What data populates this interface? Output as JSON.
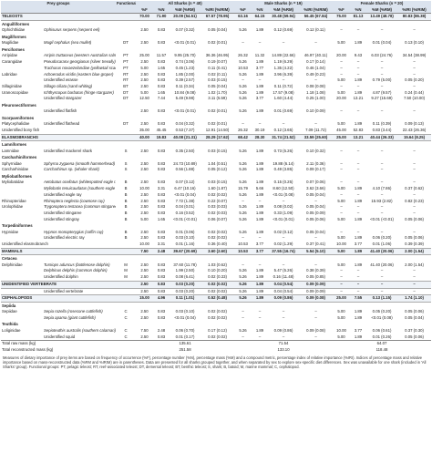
{
  "table": {
    "headers": [
      "Prey groups",
      "Functional group",
      "All Sharks (n = 40)",
      "Male Sharks (n = 19)",
      "Female Sharks (n = 20)"
    ],
    "sub_headers": [
      "%F",
      "%N",
      "%M (%RM)",
      "%IRI (%IRIM)"
    ],
    "rows": [
      [
        "TELEOSTS",
        null,
        null,
        "70.00",
        "71.90",
        "20.09 (54.51)",
        "67.57 (78.95)",
        "63.16",
        "64.15",
        "30.48 (59.94)",
        "56.45 (67.84)",
        "75.00",
        "81.13",
        "13.49 (48.78)",
        "80.83 (86.38)"
      ],
      [
        "Anguilliformes"
      ],
      [
        "Ophichthidae",
        "Ophisurus serpens (serpent eel)",
        null,
        "2.50",
        "0.83",
        "0.07 (0.32)",
        "0.05 (0.04)",
        "5.26",
        "1.89",
        "0.12 (0.69)",
        "0.12 (0.11)",
        "–",
        "–",
        "–",
        "–"
      ],
      [
        "Mugiliformes"
      ],
      [
        "Mugilidae",
        "Mugil cephalus (sea mullet)",
        "DT",
        "2.50",
        "0.83",
        "<0.01 (0.01)",
        "0.02 (0.01)",
        "–",
        "–",
        "–",
        "–",
        "5.00",
        "1.89",
        "0.01 (0.04)",
        "0.13 (0.10)"
      ],
      [
        "Perciformes"
      ],
      [
        "Arripidae",
        "Arripis truttaceus (western Australian salmon)",
        "PT",
        "25.00",
        "11.57",
        "9.95 (25.70)",
        "36.36 (46.95)",
        "26.32",
        "11.32",
        "14.89 (22.66)",
        "46.97 (40.11)",
        "20.00",
        "9.43",
        "6.03 (24.76)",
        "34.54 (38.99)"
      ],
      [
        "Carangidae",
        "Pseudocaranx georgianus (silver trevally)",
        "PT",
        "2.50",
        "0.83",
        "0.74 (3.06)",
        "0.19 (0.07)",
        "5.26",
        "1.89",
        "1.19 (6.29)",
        "0.17 (0.14)",
        "–",
        "–",
        "–",
        "–"
      ],
      [
        null,
        "Trachurus novaezelandiae (yellowtail scad)",
        "PT",
        "5.00",
        "1.65",
        "0.45 (1.23)",
        "0.11 (0.41)",
        "10.53",
        "3.77",
        "1.35 (4.22)",
        "0.46 (1.04)",
        "–",
        "–",
        "–",
        "–"
      ],
      [
        "Labridae",
        "Achoerodus viridis (eastern blue groper)",
        "RT",
        "2.50",
        "0.83",
        "1.85 (2.00)",
        "0.02 (0.11)",
        "5.26",
        "1.89",
        "3.96 (6.39)",
        "0.49 (0.23)",
        "–",
        "–",
        "–",
        "–"
      ],
      [
        null,
        "Unidentified wrasse",
        "RT",
        "2.50",
        "0.83",
        "0.39 (2.57)",
        "0.03 (0.15)",
        "–",
        "–",
        "–",
        "–",
        "5.00",
        "1.89",
        "0.79 (5.00)",
        "0.05 (0.20)"
      ],
      [
        "Sillaginidae",
        "Sillago ciliata (sand whiting)",
        "BT",
        "2.50",
        "0.83",
        "0.11 (0.34)",
        "0.05 (0.04)",
        "5.26",
        "1.89",
        "0.11 (0.72)",
        "0.08 (0.08)",
        "–",
        "–",
        "–",
        "–"
      ],
      [
        "Uranoscopidae",
        "Ichthyscopus barbatus (fringe stargazer)",
        "DT",
        "5.00",
        "1.65",
        "10.84 (9.08)",
        "1.02 (1.70)",
        "5.26",
        "1.89",
        "17.57 (9.08)",
        "1.18 (1.08)",
        "5.00",
        "1.89",
        "4.87 (9.57)",
        "0.24 (0.44)"
      ],
      [
        null,
        "Unidentified stargazer",
        "DT",
        "12.50",
        "7.44",
        "5.49 (9.98)",
        "3.11 (5.59)",
        "5.26",
        "3.77",
        "1.60 (4.44)",
        "0.25 (1.00)",
        "20.00",
        "13.21",
        "9.27 (15.69)",
        "7.50 (10.00)"
      ],
      [
        "Pleuronectiformes"
      ],
      [
        null,
        "Unidentified flatfish",
        null,
        "2.50",
        "0.83",
        "<0.01 (0.01)",
        "0.02 (0.01)",
        "5.26",
        "1.89",
        "0.01 (0.69)",
        "0.10 (0.09)",
        "–",
        "–",
        "–",
        "–"
      ],
      [
        "Scorpaeniformes"
      ],
      [
        "Platycephalidae",
        "Unidentified flathead",
        "DT",
        "2.50",
        "0.83",
        "0.04 (0.32)",
        "0.02 (0.01)",
        "–",
        "–",
        "–",
        "–",
        "5.00",
        "1.89",
        "0.11 (0.39)",
        "0.09 (0.13)"
      ],
      [
        "Unidentified bony fish",
        null,
        null,
        "35.00",
        "45.45",
        "0.53 (7.37)",
        "12.91 (14.50)",
        "26.32",
        "30.19",
        "0.12 (3.65)",
        "7.09 (11.72)",
        "45.00",
        "52.83",
        "0.83 (3.44)",
        "22.43 (26.36)"
      ],
      [
        "ELASMOBRANCHS",
        null,
        null,
        "40.00",
        "19.83",
        "40.08 (21.31)",
        "28.29 (17.62)",
        "68.42",
        "28.30",
        "31.74 (21.52)",
        "33.59 (25.60)",
        "25.00",
        "13.21",
        "40.44 (26.33)",
        "15.64 (8.25)"
      ],
      [
        "Lamniformes"
      ],
      [
        "Lamnidae",
        "Unidentified mackerel shark",
        "S",
        "2.50",
        "0.83",
        "0.35 (2.50)",
        "0.03 (0.15)",
        "5.26",
        "1.89",
        "0.73 (5.26)",
        "0.10 (0.32)",
        "–",
        "–",
        "–",
        "–"
      ],
      [
        "Carcharhiniformes"
      ],
      [
        "Sphyrnidae",
        "Sphyrna zygaena (smooth hammerhead)",
        "S",
        "2.50",
        "0.83",
        "24.73 (10.89)",
        "1.04 (0.51)",
        "5.26",
        "1.89",
        "19.88 (6.14)",
        "2.11 (0.36)",
        "–",
        "–",
        "–",
        "–"
      ],
      [
        "Carcharhinidae",
        "Carcharhinus sp. (whaler shark)",
        "S",
        "2.50",
        "0.83",
        "0.56 (1.88)",
        "0.05 (0.12)",
        "5.26",
        "1.89",
        "0.49 (3.85)",
        "0.09 (0.17)",
        "–",
        "–",
        "–",
        "–"
      ],
      [
        "Myliobatiformes"
      ],
      [
        "Myliobatidae",
        "Aetobatus ocellatus (whitespotted eagle ray)",
        "B",
        "2.50",
        "0.83",
        "0.07 (0.12)",
        "0.03 (0.15)",
        "5.26",
        "1.89",
        "0.15 (0.25)",
        "0.07 (0.06)",
        "–",
        "–",
        "–",
        "–"
      ],
      [
        null,
        "Myliobatis tenuicaudatus (southern eagle ray)",
        "B",
        "10.00",
        "3.31",
        "6.47 (10.16)",
        "1.60 (1.87)",
        "15.79",
        "5.66",
        "8.60 (12.50)",
        "3.62 (3.66)",
        "5.00",
        "1.89",
        "4.10 (7.86)",
        "0.37 (0.62)"
      ],
      [
        null,
        "Unidentified eagle ray",
        "B",
        "2.50",
        "0.83",
        "<0.01 (0.04)",
        "0.02 (0.02)",
        "5.26",
        "1.89",
        "<0.01 (0.08)",
        "0.05 (0.04)",
        "–",
        "–",
        "–",
        "–"
      ],
      [
        "Rhinopteridae",
        "Rhinoptera neglecta (cownose ray)",
        "B",
        "2.50",
        "0.83",
        "7.72 (1.38)",
        "0.22 (0.07)",
        "–",
        "–",
        "–",
        "–",
        "5.00",
        "1.89",
        "15.93 (2.82)",
        "0.82 (0.23)"
      ],
      [
        "Urolophidae",
        "Trygonoptera testacea (common stingaree)",
        "B",
        "2.50",
        "0.83",
        "0.04 (0.01)",
        "0.03 (0.03)",
        "5.26",
        "1.89",
        "0.08 (0.02)",
        "0.05 (0.04)",
        "–",
        "–",
        "–",
        "–"
      ],
      [
        null,
        "Unidentified stingaree",
        "B",
        "2.50",
        "0.83",
        "0.16 (0.52)",
        "0.02 (0.03)",
        "5.26",
        "1.89",
        "0.33 (1.09)",
        "0.05 (0.09)",
        "–",
        "–",
        "–",
        "–"
      ],
      [
        null,
        "Unidentified stingray",
        "B",
        "5.00",
        "1.65",
        "<0.01 (<0.01)",
        "0.06 (0.07)",
        "5.26",
        "1.89",
        "<0.01 (0.01)",
        "0.05 (0.06)",
        "5.00",
        "1.89",
        "<0.01 (<0.01)",
        "0.05 (0.06)"
      ],
      [
        "Torpediniformes"
      ],
      [
        "Hypnidae",
        "Hypnos monopterygius (coffin ray)",
        "B",
        "2.50",
        "0.83",
        "0.01 (0.06)",
        "0.02 (0.02)",
        "5.26",
        "1.89",
        "0.02 (0.12)",
        "0.05 (0.04)",
        "–",
        "–",
        "–",
        "–"
      ],
      [
        null,
        "Unidentified electric ray",
        "B",
        "2.50",
        "0.83",
        "0.03 (0.10)",
        "0.02 (0.02)",
        "–",
        "–",
        "–",
        "–",
        "5.00",
        "1.89",
        "0.06 (0.20)",
        "0.05 (0.06)"
      ],
      [
        "Unidentified elasmobranch",
        null,
        null,
        "10.00",
        "3.31",
        "0.01 (1.16)",
        "0.36 (0.40)",
        "10.53",
        "3.77",
        "0.02 (1.29)",
        "0.37 (0.41)",
        "10.00",
        "3.77",
        "0.01 (1.06)",
        "0.39 (0.39)"
      ],
      [
        "MAMMALS",
        null,
        null,
        "7.50",
        "2.48",
        "39.67 (20.69)",
        "3.60 (2.60)",
        "10.53",
        "3.77",
        "37.55 (16.74)",
        "5.54 (5.10)",
        "5.00",
        "1.89",
        "41.40 (20.06)",
        "2.00 (1.54)"
      ],
      [
        "Cetacea"
      ],
      [
        "Delphinidae",
        "Tursiops aduncus (bottlenose dolphin)",
        "M",
        "2.50",
        "0.83",
        "37.60 (11.78)",
        "1.03 (0.62)",
        "–",
        "–",
        "–",
        "–",
        "5.00",
        "1.89",
        "41.40 (20.06)",
        "2.00 (1.54)"
      ],
      [
        null,
        "Delphinus delphis (common dolphin)",
        "M",
        "2.50",
        "0.83",
        "1.99 (2.50)",
        "0.10 (0.20)",
        "5.26",
        "1.89",
        "5.47 (5.26)",
        "0.38 (0.39)",
        "–",
        "–",
        "–",
        "–"
      ],
      [
        null,
        "Unidentified dolphin",
        "M",
        "2.50",
        "0.83",
        "0.08 (6.41)",
        "0.02 (0.33)",
        "5.26",
        "1.89",
        "0.16 (11.48)",
        "0.05 (0.85)",
        "–",
        "–",
        "–",
        "–"
      ],
      [
        "UNIDENTIFIED VERTEBRATE",
        null,
        null,
        "2.50",
        "0.83",
        "0.03 (0.20)",
        "0.02 (0.02)",
        "5.26",
        "1.89",
        "0.04 (0.54)",
        "0.09 (0.09)",
        "–",
        "–",
        "–",
        "–"
      ],
      [
        null,
        "Unidentified vertebrate",
        null,
        "2.50",
        "0.83",
        "0.03 (0.20)",
        "0.02 (0.02)",
        "5.26",
        "1.89",
        "0.04 (0.54)",
        "0.09 (0.09)",
        "–",
        "–",
        "–",
        "–"
      ],
      [
        "CEPHALOPODS",
        null,
        null,
        "15.00",
        "4.96",
        "0.11 (1.01)",
        "0.52 (0.48)",
        "5.26",
        "1.89",
        "0.09 (0.86)",
        "0.09 (0.08)",
        "25.00",
        "7.55",
        "0.13 (1.15)",
        "1.74 (1.10)"
      ],
      [
        "Sepiida"
      ],
      [
        "Sepiidae",
        "Sepia rozella (rosecone cuttlefish)",
        "C",
        "2.50",
        "0.83",
        "0.03 (0.10)",
        "0.02 (0.02)",
        "–",
        "–",
        "–",
        "–",
        "5.00",
        "1.89",
        "0.05 (0.20)",
        "0.05 (0.06)"
      ],
      [
        null,
        "Sepia apama (giant cuttlefish)",
        "C",
        "2.50",
        "0.83",
        "<0.01 (0.04)",
        "0.02 (0.02)",
        "–",
        "–",
        "–",
        "–",
        "5.00",
        "1.89",
        "<0.01 (0.08)",
        "0.05 (0.04)"
      ],
      [
        "Teuthida"
      ],
      [
        "Loliginidae",
        "Sepioteuthis australis (southern calamari)",
        "C",
        "7.50",
        "2.48",
        "0.06 (0.70)",
        "0.17 (0.12)",
        "5.26",
        "1.89",
        "0.09 (0.86)",
        "0.09 (0.08)",
        "10.00",
        "3.77",
        "0.06 (0.61)",
        "0.37 (0.30)"
      ],
      [
        null,
        "Unidentified squid",
        "C",
        "2.50",
        "0.83",
        "0.01 (0.17)",
        "0.02 (0.02)",
        "–",
        "–",
        "–",
        "–",
        "5.00",
        "1.89",
        "0.01 (0.26)",
        "0.05 (0.06)"
      ],
      [
        "Total raw mass (kg)",
        null,
        null,
        null,
        null,
        "135.61",
        null,
        null,
        null,
        "71.54",
        null,
        null,
        null,
        "64.07",
        null
      ],
      [
        "Total reconstructed mass (kg)",
        null,
        null,
        null,
        null,
        "251.58",
        null,
        null,
        null,
        "133.10",
        null,
        null,
        null,
        "118.48",
        null
      ]
    ],
    "footnote": "Measures of dietary importance of prey items are based on frequency of occurrence (%F), percentage number (%N), percentage mass (%M) and a compound metric, percentage index of relative importance (%IRI). Indices of percentage mass and relative importance based on mass-reconstructed data (%RM and %IRIM) are in parentheses. Data are presented for all sharks grouped together, and when separated by sex to explore sex-specific diet differences. Sex was unavailable for one shark (included in 'All Sharks' group). Functional groups: PT, pelagic teleost; RT, reef-associated teleost; DT, demersal teleost; BT, benthic teleost; S, shark; B, batoid; M, marine mammal; C, cephalopod."
  }
}
